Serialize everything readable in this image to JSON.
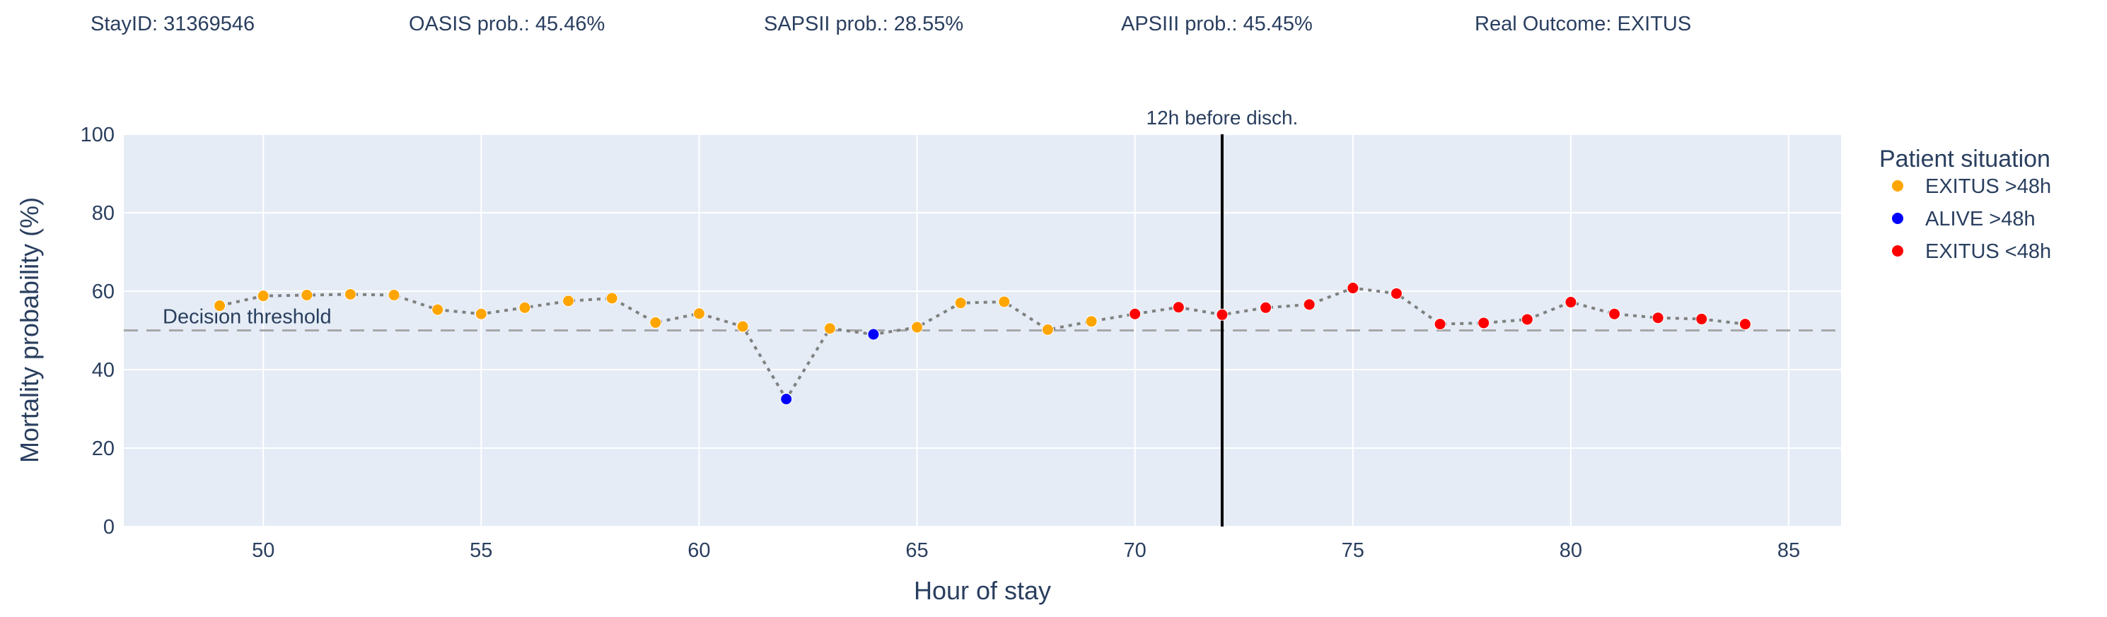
{
  "header": {
    "stay_id": "StayID: 31369546",
    "oasis": "OASIS prob.: 45.46%",
    "sapsii": "SAPSII prob.: 28.55%",
    "apsiii": "APSIII prob.: 45.45%",
    "outcome": "Real Outcome: EXITUS"
  },
  "chart_data": {
    "type": "scatter",
    "xlabel": "Hour of stay",
    "ylabel": "Mortality probability (%)",
    "xlim": [
      46.8,
      86.2
    ],
    "ylim": [
      0,
      100
    ],
    "xticks": [
      50,
      55,
      60,
      65,
      70,
      75,
      80,
      85
    ],
    "yticks": [
      0,
      20,
      40,
      60,
      80,
      100
    ],
    "threshold": {
      "value": 50,
      "label": "Decision threshold"
    },
    "marker_line": {
      "x": 72,
      "label": "12h before disch."
    },
    "legend": {
      "title": "Patient situation",
      "position": "right",
      "entries": [
        {
          "key": "exitus_gt48",
          "label": "EXITUS >48h",
          "color": "#ffa500"
        },
        {
          "key": "alive_gt48",
          "label": "ALIVE >48h",
          "color": "#0000ff"
        },
        {
          "key": "exitus_lt48",
          "label": "EXITUS <48h",
          "color": "#ff0000"
        }
      ]
    },
    "points": [
      {
        "x": 49,
        "y": 56.3,
        "status": "exitus_gt48"
      },
      {
        "x": 50,
        "y": 58.8,
        "status": "exitus_gt48"
      },
      {
        "x": 51,
        "y": 59.0,
        "status": "exitus_gt48"
      },
      {
        "x": 52,
        "y": 59.2,
        "status": "exitus_gt48"
      },
      {
        "x": 53,
        "y": 59.0,
        "status": "exitus_gt48"
      },
      {
        "x": 54,
        "y": 55.3,
        "status": "exitus_gt48"
      },
      {
        "x": 55,
        "y": 54.2,
        "status": "exitus_gt48"
      },
      {
        "x": 56,
        "y": 55.8,
        "status": "exitus_gt48"
      },
      {
        "x": 57,
        "y": 57.5,
        "status": "exitus_gt48"
      },
      {
        "x": 58,
        "y": 58.2,
        "status": "exitus_gt48"
      },
      {
        "x": 59,
        "y": 52.0,
        "status": "exitus_gt48"
      },
      {
        "x": 60,
        "y": 54.3,
        "status": "exitus_gt48"
      },
      {
        "x": 61,
        "y": 51.0,
        "status": "exitus_gt48"
      },
      {
        "x": 62,
        "y": 32.5,
        "status": "alive_gt48"
      },
      {
        "x": 63,
        "y": 50.5,
        "status": "exitus_gt48"
      },
      {
        "x": 64,
        "y": 49.0,
        "status": "alive_gt48"
      },
      {
        "x": 65,
        "y": 50.8,
        "status": "exitus_gt48"
      },
      {
        "x": 66,
        "y": 57.0,
        "status": "exitus_gt48"
      },
      {
        "x": 67,
        "y": 57.3,
        "status": "exitus_gt48"
      },
      {
        "x": 68,
        "y": 50.2,
        "status": "exitus_gt48"
      },
      {
        "x": 69,
        "y": 52.3,
        "status": "exitus_gt48"
      },
      {
        "x": 70,
        "y": 54.2,
        "status": "exitus_lt48"
      },
      {
        "x": 71,
        "y": 55.9,
        "status": "exitus_lt48"
      },
      {
        "x": 72,
        "y": 54.0,
        "status": "exitus_lt48"
      },
      {
        "x": 73,
        "y": 55.8,
        "status": "exitus_lt48"
      },
      {
        "x": 74,
        "y": 56.6,
        "status": "exitus_lt48"
      },
      {
        "x": 75,
        "y": 60.8,
        "status": "exitus_lt48"
      },
      {
        "x": 76,
        "y": 59.4,
        "status": "exitus_lt48"
      },
      {
        "x": 77,
        "y": 51.6,
        "status": "exitus_lt48"
      },
      {
        "x": 78,
        "y": 51.9,
        "status": "exitus_lt48"
      },
      {
        "x": 79,
        "y": 52.8,
        "status": "exitus_lt48"
      },
      {
        "x": 80,
        "y": 57.2,
        "status": "exitus_lt48"
      },
      {
        "x": 81,
        "y": 54.2,
        "status": "exitus_lt48"
      },
      {
        "x": 82,
        "y": 53.2,
        "status": "exitus_lt48"
      },
      {
        "x": 83,
        "y": 52.9,
        "status": "exitus_lt48"
      },
      {
        "x": 84,
        "y": 51.6,
        "status": "exitus_lt48"
      }
    ]
  }
}
